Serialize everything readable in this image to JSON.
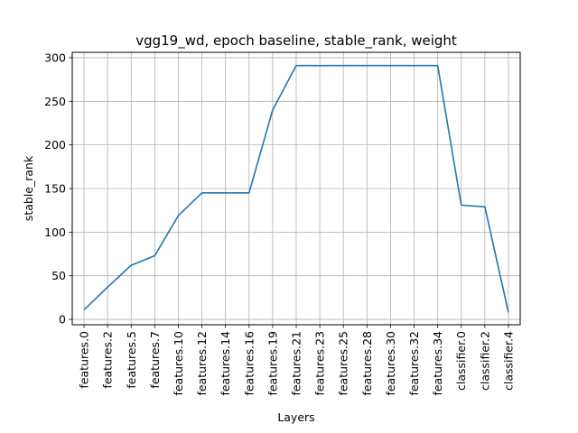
{
  "chart_data": {
    "type": "line",
    "title": "vgg19_wd, epoch baseline, stable_rank, weight",
    "xlabel": "Layers",
    "ylabel": "stable_rank",
    "categories": [
      "features.0",
      "features.2",
      "features.5",
      "features.7",
      "features.10",
      "features.12",
      "features.14",
      "features.16",
      "features.19",
      "features.21",
      "features.23",
      "features.25",
      "features.28",
      "features.30",
      "features.32",
      "features.34",
      "classifier.0",
      "classifier.2",
      "classifier.4"
    ],
    "series": [
      {
        "values": [
          11,
          37,
          62,
          73,
          119,
          145,
          145,
          145,
          240,
          291,
          291,
          291,
          291,
          291,
          291,
          291,
          131,
          129,
          8
        ],
        "color": "#1f77b4"
      }
    ],
    "yticks": [
      0,
      50,
      100,
      150,
      200,
      250,
      300
    ],
    "ylim": [
      -6.15,
      306.15
    ],
    "grid": true,
    "legend": "none"
  }
}
